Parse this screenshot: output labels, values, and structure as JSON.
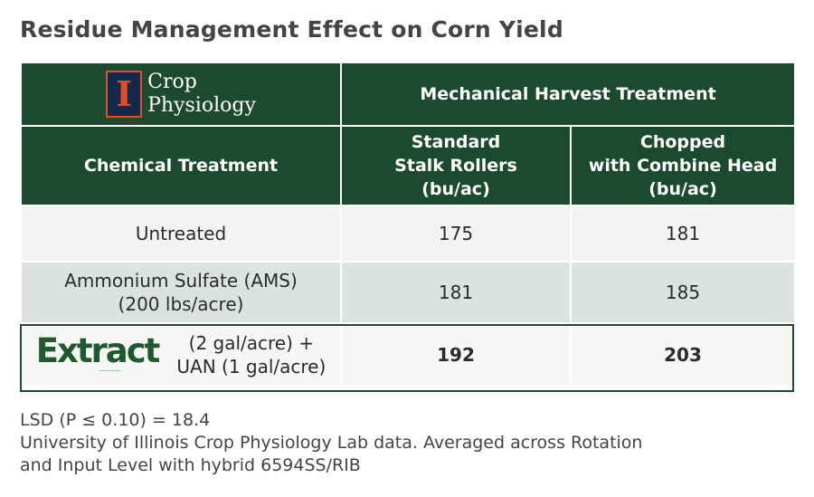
{
  "title": "Residue Management Effect on Corn Yield",
  "logo": {
    "line1": "Crop",
    "line2": "Physiology",
    "glyph": "I"
  },
  "header": {
    "mechanical": "Mechanical Harvest Treatment",
    "chemical": "Chemical Treatment",
    "col1": {
      "line1": "Standard",
      "line2": "Stalk Rollers",
      "line3": "(bu/ac)"
    },
    "col2": {
      "line1": "Chopped",
      "line2": "with Combine Head",
      "line3": "(bu/ac)"
    }
  },
  "rows": [
    {
      "label": "Untreated",
      "standard": "175",
      "chopped": "181"
    },
    {
      "label_line1": "Ammonium Sulfate (AMS)",
      "label_line2": "(200 lbs/acre)",
      "standard": "181",
      "chopped": "185"
    },
    {
      "brand": "Extract",
      "label_line1": "(2 gal/acre) +",
      "label_line2": "UAN (1 gal/acre)",
      "standard": "192",
      "chopped": "203"
    }
  ],
  "footer": {
    "lsd": "LSD (P ≤ 0.10) = 18.4",
    "source_line1": "University of Illinois Crop Physiology Lab data. Averaged across Rotation",
    "source_line2": "and Input Level with hybrid 6594SS/RIB"
  },
  "chart_data": {
    "type": "table",
    "title": "Residue Management Effect on Corn Yield",
    "columns": [
      "Chemical Treatment",
      "Standard Stalk Rollers (bu/ac)",
      "Chopped with Combine Head (bu/ac)"
    ],
    "rows": [
      [
        "Untreated",
        175,
        181
      ],
      [
        "Ammonium Sulfate (AMS) (200 lbs/acre)",
        181,
        185
      ],
      [
        "Extract (2 gal/acre) + UAN (1 gal/acre)",
        192,
        203
      ]
    ]
  },
  "colors": {
    "header_bg": "#1c4a2f",
    "logo_orange": "#e84a27",
    "logo_navy": "#13294b",
    "brand_green": "#1e5a2e"
  }
}
